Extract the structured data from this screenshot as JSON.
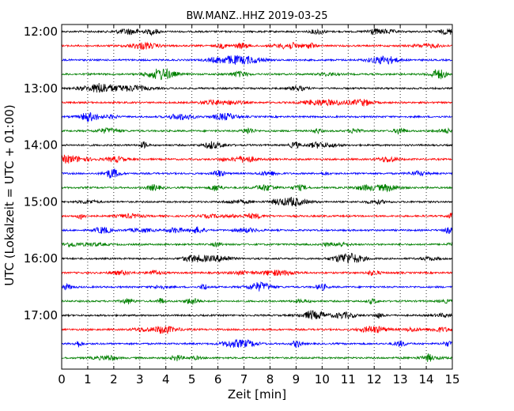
{
  "chart_data": {
    "type": "line",
    "title": "BW.MANZ..HHZ 2019-03-25",
    "xlabel": "Zeit  [min]",
    "ylabel": "UTC (Lokalzeit = UTC + 01:00)",
    "xlim": [
      0,
      15
    ],
    "x_ticks": [
      "0",
      "1",
      "2",
      "3",
      "4",
      "5",
      "6",
      "7",
      "8",
      "9",
      "10",
      "11",
      "12",
      "13",
      "14",
      "15"
    ],
    "y_tick_labels": [
      "12:00",
      "13:00",
      "14:00",
      "15:00",
      "16:00",
      "17:00"
    ],
    "grid": "vertical dotted at each minute",
    "series": [
      {
        "row": "12:00",
        "color": "#000000"
      },
      {
        "row": "12:15",
        "color": "#ff0000"
      },
      {
        "row": "12:30",
        "color": "#0000ff"
      },
      {
        "row": "12:45",
        "color": "#008000"
      },
      {
        "row": "13:00",
        "color": "#000000"
      },
      {
        "row": "13:15",
        "color": "#ff0000"
      },
      {
        "row": "13:30",
        "color": "#0000ff"
      },
      {
        "row": "13:45",
        "color": "#008000"
      },
      {
        "row": "14:00",
        "color": "#000000"
      },
      {
        "row": "14:15",
        "color": "#ff0000"
      },
      {
        "row": "14:30",
        "color": "#0000ff"
      },
      {
        "row": "14:45",
        "color": "#008000"
      },
      {
        "row": "15:00",
        "color": "#000000"
      },
      {
        "row": "15:15",
        "color": "#ff0000"
      },
      {
        "row": "15:30",
        "color": "#0000ff"
      },
      {
        "row": "15:45",
        "color": "#008000"
      },
      {
        "row": "16:00",
        "color": "#000000"
      },
      {
        "row": "16:15",
        "color": "#ff0000"
      },
      {
        "row": "16:30",
        "color": "#0000ff"
      },
      {
        "row": "16:45",
        "color": "#008000"
      },
      {
        "row": "17:00",
        "color": "#000000"
      },
      {
        "row": "17:15",
        "color": "#ff0000"
      },
      {
        "row": "17:30",
        "color": "#0000ff"
      },
      {
        "row": "17:45",
        "color": "#008000"
      }
    ]
  }
}
